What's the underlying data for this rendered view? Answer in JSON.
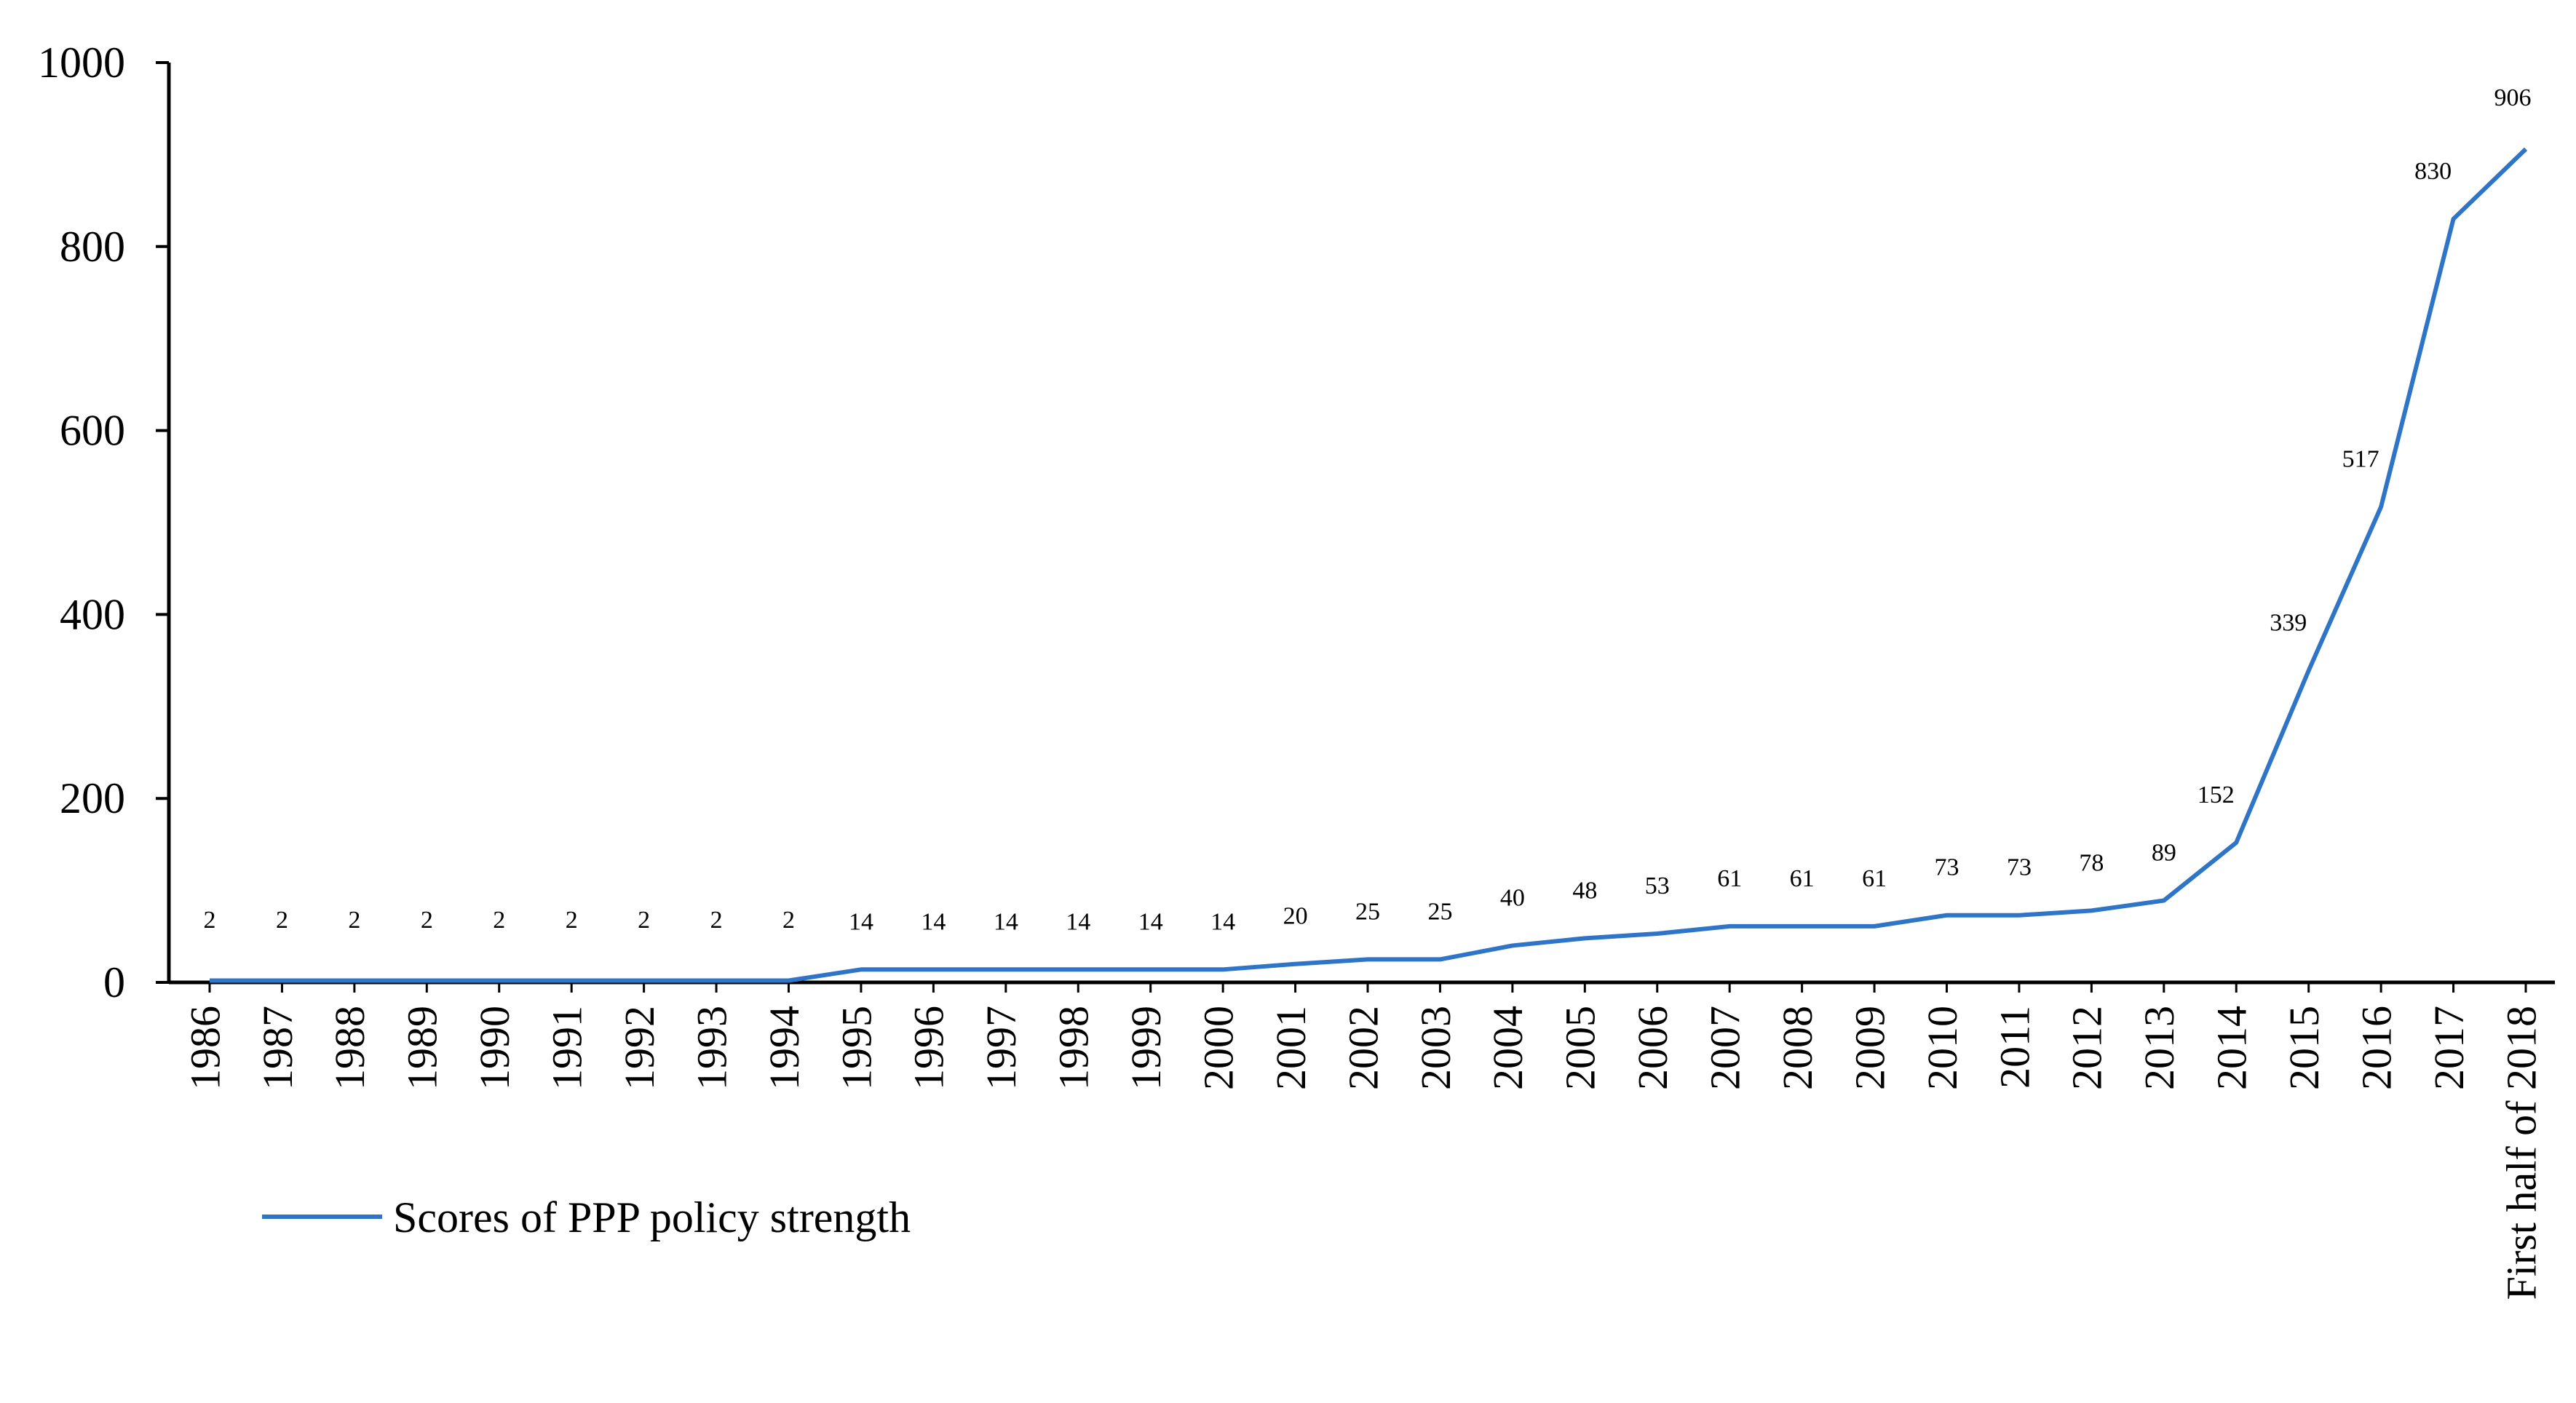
{
  "chart_data": {
    "type": "line",
    "title": "",
    "xlabel": "",
    "ylabel": "",
    "ylim": [
      0,
      1000
    ],
    "yticks": [
      0,
      200,
      400,
      600,
      800,
      1000
    ],
    "grid": false,
    "legend_position": "bottom-left",
    "categories": [
      "1986",
      "1987",
      "1988",
      "1989",
      "1990",
      "1991",
      "1992",
      "1993",
      "1994",
      "1995",
      "1996",
      "1997",
      "1998",
      "1999",
      "2000",
      "2001",
      "2002",
      "2003",
      "2004",
      "2005",
      "2006",
      "2007",
      "2008",
      "2009",
      "2010",
      "2011",
      "2012",
      "2013",
      "2014",
      "2015",
      "2016",
      "2017",
      "First half of 2018"
    ],
    "series": [
      {
        "name": "Scores of PPP policy strength",
        "color": "#2e75c8",
        "values": [
          2,
          2,
          2,
          2,
          2,
          2,
          2,
          2,
          2,
          14,
          14,
          14,
          14,
          14,
          14,
          20,
          25,
          25,
          40,
          48,
          53,
          61,
          61,
          61,
          73,
          73,
          78,
          89,
          152,
          339,
          517,
          830,
          906
        ]
      }
    ]
  }
}
